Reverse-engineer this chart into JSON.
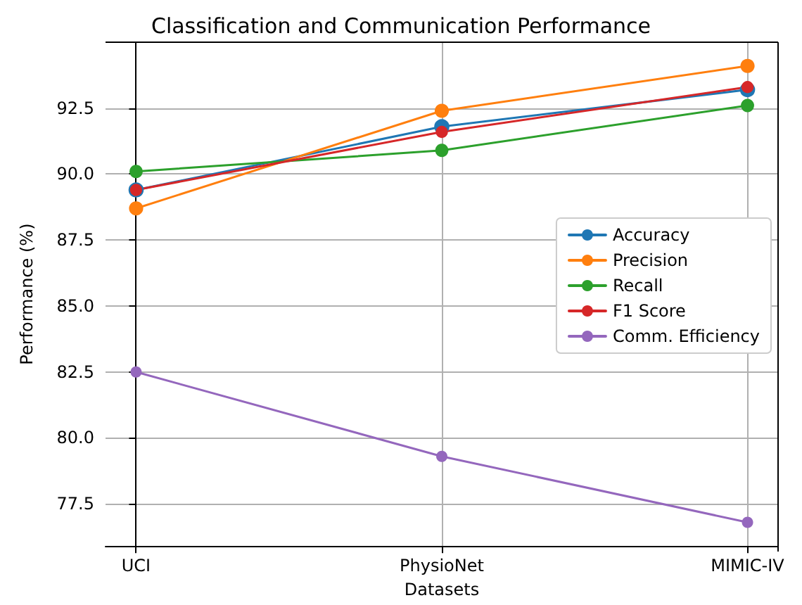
{
  "chart_data": {
    "type": "line",
    "title": "Classification and Communication Performance",
    "xlabel": "Datasets",
    "ylabel": "Performance (%)",
    "categories": [
      "UCI",
      "PhysioNet",
      "MIMIC-IV"
    ],
    "series": [
      {
        "name": "Accuracy",
        "color": "#1f77b4",
        "values": [
          89.4,
          91.8,
          93.2
        ]
      },
      {
        "name": "Precision",
        "color": "#ff7f0e",
        "values": [
          88.7,
          92.4,
          94.1
        ]
      },
      {
        "name": "Recall",
        "color": "#2ca02c",
        "values": [
          90.1,
          90.9,
          92.6
        ]
      },
      {
        "name": "F1 Score",
        "color": "#d62728",
        "values": [
          89.4,
          91.6,
          93.3
        ]
      },
      {
        "name": "Comm. Efficiency",
        "color": "#9467bd",
        "values": [
          82.5,
          79.3,
          76.8
        ]
      }
    ],
    "ylim": [
      75.9,
      95.0
    ],
    "yticks": [
      {
        "value": 77.5,
        "label": "77.5"
      },
      {
        "value": 80,
        "label": "80.0"
      },
      {
        "value": 82.5,
        "label": "82.5"
      },
      {
        "value": 85,
        "label": "85.0"
      },
      {
        "value": 87.5,
        "label": "87.5"
      },
      {
        "value": 90,
        "label": "90.0"
      },
      {
        "value": 92.5,
        "label": "92.5"
      }
    ],
    "grid": true,
    "legend": "center right",
    "marker": "circle",
    "line_style": "solid"
  }
}
